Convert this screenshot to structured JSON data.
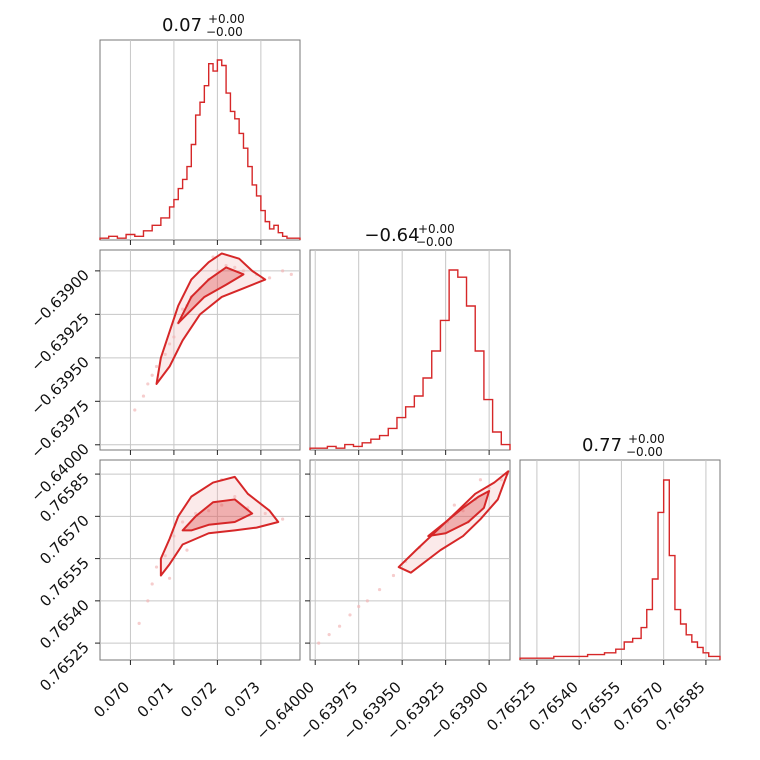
{
  "figure": {
    "accent_color": "#d62728",
    "fill_color": "#f2b8b8",
    "grid_color": "#c6c6c6"
  },
  "chart_data": [
    {
      "type": "histogram",
      "parameter_index": 0,
      "title": {
        "value": "0.07",
        "upper": "+0.00",
        "lower": "−0.00"
      },
      "xlim": [
        0.0693,
        0.0739
      ],
      "xticks": [
        {
          "value": 0.07,
          "label": ""
        },
        {
          "value": 0.071,
          "label": ""
        },
        {
          "value": 0.072,
          "label": ""
        },
        {
          "value": 0.073,
          "label": ""
        }
      ],
      "bins": [
        0.0693,
        0.0695,
        0.0697,
        0.0699,
        0.0701,
        0.0703,
        0.0705,
        0.0707,
        0.0709,
        0.071,
        0.0711,
        0.0712,
        0.0713,
        0.0714,
        0.0715,
        0.0716,
        0.0717,
        0.0718,
        0.0719,
        0.072,
        0.0721,
        0.0722,
        0.0723,
        0.0724,
        0.0725,
        0.0726,
        0.0727,
        0.0728,
        0.0729,
        0.073,
        0.0731,
        0.0732,
        0.0733,
        0.0734,
        0.0735,
        0.0736,
        0.0737,
        0.0739
      ],
      "counts": [
        1,
        2,
        1,
        3,
        2,
        5,
        8,
        12,
        18,
        22,
        28,
        33,
        40,
        52,
        68,
        75,
        84,
        96,
        92,
        98,
        95,
        80,
        70,
        66,
        58,
        50,
        40,
        30,
        24,
        16,
        10,
        6,
        8,
        4,
        2,
        1,
        1
      ]
    },
    {
      "type": "histogram",
      "parameter_index": 1,
      "title": {
        "value": "−0.64",
        "upper": "+0.00",
        "lower": "−0.00"
      },
      "xlim": [
        -0.64003,
        -0.63888
      ],
      "xticks": [
        {
          "value": -0.64,
          "label": ""
        },
        {
          "value": -0.63975,
          "label": ""
        },
        {
          "value": -0.6395,
          "label": ""
        },
        {
          "value": -0.63925,
          "label": ""
        },
        {
          "value": -0.639,
          "label": ""
        }
      ],
      "bins": [
        -0.64003,
        -0.63998,
        -0.63993,
        -0.63988,
        -0.63983,
        -0.63978,
        -0.63973,
        -0.63968,
        -0.63963,
        -0.63958,
        -0.63953,
        -0.63948,
        -0.63943,
        -0.63938,
        -0.63933,
        -0.63928,
        -0.63923,
        -0.63918,
        -0.63913,
        -0.63908,
        -0.63903,
        -0.63898,
        -0.63893,
        -0.63888
      ],
      "counts": [
        1,
        1,
        2,
        1,
        3,
        2,
        4,
        6,
        8,
        12,
        18,
        24,
        30,
        40,
        55,
        72,
        100,
        96,
        80,
        55,
        28,
        10,
        3
      ]
    },
    {
      "type": "histogram",
      "parameter_index": 2,
      "title": {
        "value": "0.77",
        "upper": "+0.00",
        "lower": "−0.00"
      },
      "xlim": [
        0.76519,
        0.7659
      ],
      "xticks": [
        {
          "value": 0.76525,
          "label": "0.76525"
        },
        {
          "value": 0.7654,
          "label": "0.76540"
        },
        {
          "value": 0.76555,
          "label": "0.76555"
        },
        {
          "value": 0.7657,
          "label": "0.76570"
        },
        {
          "value": 0.76585,
          "label": "0.76585"
        }
      ],
      "bins": [
        0.76519,
        0.76525,
        0.76531,
        0.76537,
        0.76543,
        0.76549,
        0.76553,
        0.76556,
        0.76559,
        0.76562,
        0.76564,
        0.76566,
        0.76568,
        0.7657,
        0.76572,
        0.76574,
        0.76576,
        0.76578,
        0.7658,
        0.76582,
        0.76584,
        0.76586,
        0.7659
      ],
      "counts": [
        1,
        1,
        2,
        2,
        3,
        4,
        6,
        10,
        12,
        18,
        28,
        45,
        82,
        100,
        58,
        28,
        20,
        14,
        10,
        7,
        4,
        2
      ]
    },
    {
      "type": "contour",
      "x_parameter_index": 0,
      "y_parameter_index": 1,
      "xlim": [
        0.0693,
        0.0739
      ],
      "ylim": [
        -0.64003,
        -0.63888
      ],
      "xticks": [
        {
          "value": 0.07,
          "label": ""
        },
        {
          "value": 0.071,
          "label": ""
        },
        {
          "value": 0.072,
          "label": ""
        },
        {
          "value": 0.073,
          "label": ""
        }
      ],
      "yticks": [
        {
          "value": -0.639,
          "label": "−0.63900"
        },
        {
          "value": -0.63925,
          "label": "−0.63925"
        },
        {
          "value": -0.6395,
          "label": "−0.63950"
        },
        {
          "value": -0.63975,
          "label": "−0.63975"
        },
        {
          "value": -0.64,
          "label": "−0.64000"
        }
      ],
      "outer_contour": [
        [
          0.0707,
          -0.6395
        ],
        [
          0.0709,
          -0.63935
        ],
        [
          0.0711,
          -0.6392
        ],
        [
          0.0714,
          -0.63905
        ],
        [
          0.0718,
          -0.63895
        ],
        [
          0.0721,
          -0.6389
        ],
        [
          0.0725,
          -0.63893
        ],
        [
          0.0728,
          -0.639
        ],
        [
          0.0731,
          -0.63905
        ],
        [
          0.0726,
          -0.6391
        ],
        [
          0.0721,
          -0.63915
        ],
        [
          0.0716,
          -0.63925
        ],
        [
          0.0712,
          -0.6394
        ],
        [
          0.0709,
          -0.63955
        ],
        [
          0.0706,
          -0.63965
        ]
      ],
      "inner_contour": [
        [
          0.0711,
          -0.6393
        ],
        [
          0.0714,
          -0.63915
        ],
        [
          0.0718,
          -0.63905
        ],
        [
          0.0722,
          -0.63898
        ],
        [
          0.0726,
          -0.63902
        ],
        [
          0.0722,
          -0.63908
        ],
        [
          0.0717,
          -0.63915
        ],
        [
          0.0713,
          -0.63925
        ]
      ],
      "samples": [
        [
          0.0701,
          -0.6398
        ],
        [
          0.0703,
          -0.63972
        ],
        [
          0.0704,
          -0.63965
        ],
        [
          0.0705,
          -0.6396
        ],
        [
          0.0706,
          -0.63955
        ],
        [
          0.0708,
          -0.63948
        ],
        [
          0.071,
          -0.63938
        ],
        [
          0.0711,
          -0.6393
        ],
        [
          0.0712,
          -0.63922
        ],
        [
          0.0714,
          -0.63915
        ],
        [
          0.0716,
          -0.6391
        ],
        [
          0.0718,
          -0.63905
        ],
        [
          0.072,
          -0.639
        ],
        [
          0.0722,
          -0.63897
        ],
        [
          0.0724,
          -0.63898
        ],
        [
          0.0726,
          -0.639
        ],
        [
          0.0729,
          -0.63902
        ],
        [
          0.0732,
          -0.63904
        ],
        [
          0.0735,
          -0.639
        ],
        [
          0.0737,
          -0.63902
        ],
        [
          0.0719,
          -0.63892
        ],
        [
          0.0713,
          -0.6392
        ],
        [
          0.0709,
          -0.63942
        ]
      ]
    },
    {
      "type": "contour",
      "x_parameter_index": 0,
      "y_parameter_index": 2,
      "xlim": [
        0.0693,
        0.0739
      ],
      "ylim": [
        0.76519,
        0.7659
      ],
      "xticks": [
        {
          "value": 0.07,
          "label": "0.070"
        },
        {
          "value": 0.071,
          "label": "0.071"
        },
        {
          "value": 0.072,
          "label": "0.072"
        },
        {
          "value": 0.073,
          "label": "0.073"
        }
      ],
      "yticks": [
        {
          "value": 0.76525,
          "label": "0.76525"
        },
        {
          "value": 0.7654,
          "label": "0.76540"
        },
        {
          "value": 0.76555,
          "label": "0.76555"
        },
        {
          "value": 0.7657,
          "label": "0.76570"
        },
        {
          "value": 0.76585,
          "label": "0.76585"
        }
      ],
      "outer_contour": [
        [
          0.0707,
          0.76555
        ],
        [
          0.0709,
          0.76562
        ],
        [
          0.0711,
          0.7657
        ],
        [
          0.0714,
          0.76577
        ],
        [
          0.0719,
          0.76582
        ],
        [
          0.0724,
          0.76584
        ],
        [
          0.0727,
          0.76578
        ],
        [
          0.0732,
          0.76572
        ],
        [
          0.0734,
          0.76568
        ],
        [
          0.0729,
          0.76566
        ],
        [
          0.0724,
          0.76565
        ],
        [
          0.0718,
          0.76564
        ],
        [
          0.0712,
          0.7656
        ],
        [
          0.0709,
          0.76553
        ],
        [
          0.0707,
          0.76549
        ]
      ],
      "inner_contour": [
        [
          0.0712,
          0.76565
        ],
        [
          0.0715,
          0.7657
        ],
        [
          0.0719,
          0.76575
        ],
        [
          0.0724,
          0.76576
        ],
        [
          0.0728,
          0.76571
        ],
        [
          0.0724,
          0.76568
        ],
        [
          0.0718,
          0.76567
        ],
        [
          0.0714,
          0.76565
        ]
      ],
      "samples": [
        [
          0.0702,
          0.76532
        ],
        [
          0.0704,
          0.7654
        ],
        [
          0.0705,
          0.76546
        ],
        [
          0.0706,
          0.76552
        ],
        [
          0.0708,
          0.76556
        ],
        [
          0.071,
          0.76563
        ],
        [
          0.0712,
          0.76568
        ],
        [
          0.0715,
          0.76571
        ],
        [
          0.0718,
          0.76572
        ],
        [
          0.0721,
          0.76574
        ],
        [
          0.0724,
          0.76577
        ],
        [
          0.0727,
          0.76573
        ],
        [
          0.0731,
          0.76571
        ],
        [
          0.0735,
          0.76569
        ],
        [
          0.0721,
          0.76583
        ],
        [
          0.0713,
          0.76558
        ],
        [
          0.0709,
          0.76548
        ]
      ]
    },
    {
      "type": "contour",
      "x_parameter_index": 1,
      "y_parameter_index": 2,
      "xlim": [
        -0.64003,
        -0.63888
      ],
      "ylim": [
        0.76519,
        0.7659
      ],
      "xticks": [
        {
          "value": -0.64,
          "label": "−0.64000"
        },
        {
          "value": -0.63975,
          "label": "−0.63975"
        },
        {
          "value": -0.6395,
          "label": "−0.63950"
        },
        {
          "value": -0.63925,
          "label": "−0.63925"
        },
        {
          "value": -0.639,
          "label": "−0.63900"
        }
      ],
      "yticks": [
        {
          "value": 0.76525,
          "label": ""
        },
        {
          "value": 0.7654,
          "label": ""
        },
        {
          "value": 0.76555,
          "label": ""
        },
        {
          "value": 0.7657,
          "label": ""
        },
        {
          "value": 0.76585,
          "label": ""
        }
      ],
      "outer_contour": [
        [
          -0.63952,
          0.76552
        ],
        [
          -0.63942,
          0.76558
        ],
        [
          -0.6393,
          0.76565
        ],
        [
          -0.63918,
          0.76572
        ],
        [
          -0.63908,
          0.76578
        ],
        [
          -0.63897,
          0.76582
        ],
        [
          -0.63889,
          0.76586
        ],
        [
          -0.63895,
          0.76576
        ],
        [
          -0.63905,
          0.76569
        ],
        [
          -0.63915,
          0.76563
        ],
        [
          -0.63928,
          0.76558
        ],
        [
          -0.63945,
          0.7655
        ]
      ],
      "inner_contour": [
        [
          -0.63935,
          0.76563
        ],
        [
          -0.63925,
          0.76568
        ],
        [
          -0.63915,
          0.76573
        ],
        [
          -0.63906,
          0.76577
        ],
        [
          -0.639,
          0.76579
        ],
        [
          -0.63903,
          0.76573
        ],
        [
          -0.63912,
          0.76568
        ],
        [
          -0.63925,
          0.76564
        ]
      ],
      "samples": [
        [
          -0.63998,
          0.76525
        ],
        [
          -0.63992,
          0.76528
        ],
        [
          -0.63986,
          0.76531
        ],
        [
          -0.6398,
          0.76535
        ],
        [
          -0.63975,
          0.76538
        ],
        [
          -0.6397,
          0.7654
        ],
        [
          -0.63963,
          0.76544
        ],
        [
          -0.63955,
          0.76549
        ],
        [
          -0.63948,
          0.76554
        ],
        [
          -0.6394,
          0.76559
        ],
        [
          -0.63932,
          0.76564
        ],
        [
          -0.63924,
          0.76568
        ],
        [
          -0.63915,
          0.76572
        ],
        [
          -0.63908,
          0.76576
        ],
        [
          -0.639,
          0.7658
        ],
        [
          -0.63893,
          0.76583
        ],
        [
          -0.6389,
          0.76585
        ],
        [
          -0.63912,
          0.76568
        ],
        [
          -0.6392,
          0.76574
        ],
        [
          -0.63905,
          0.76583
        ]
      ]
    }
  ]
}
